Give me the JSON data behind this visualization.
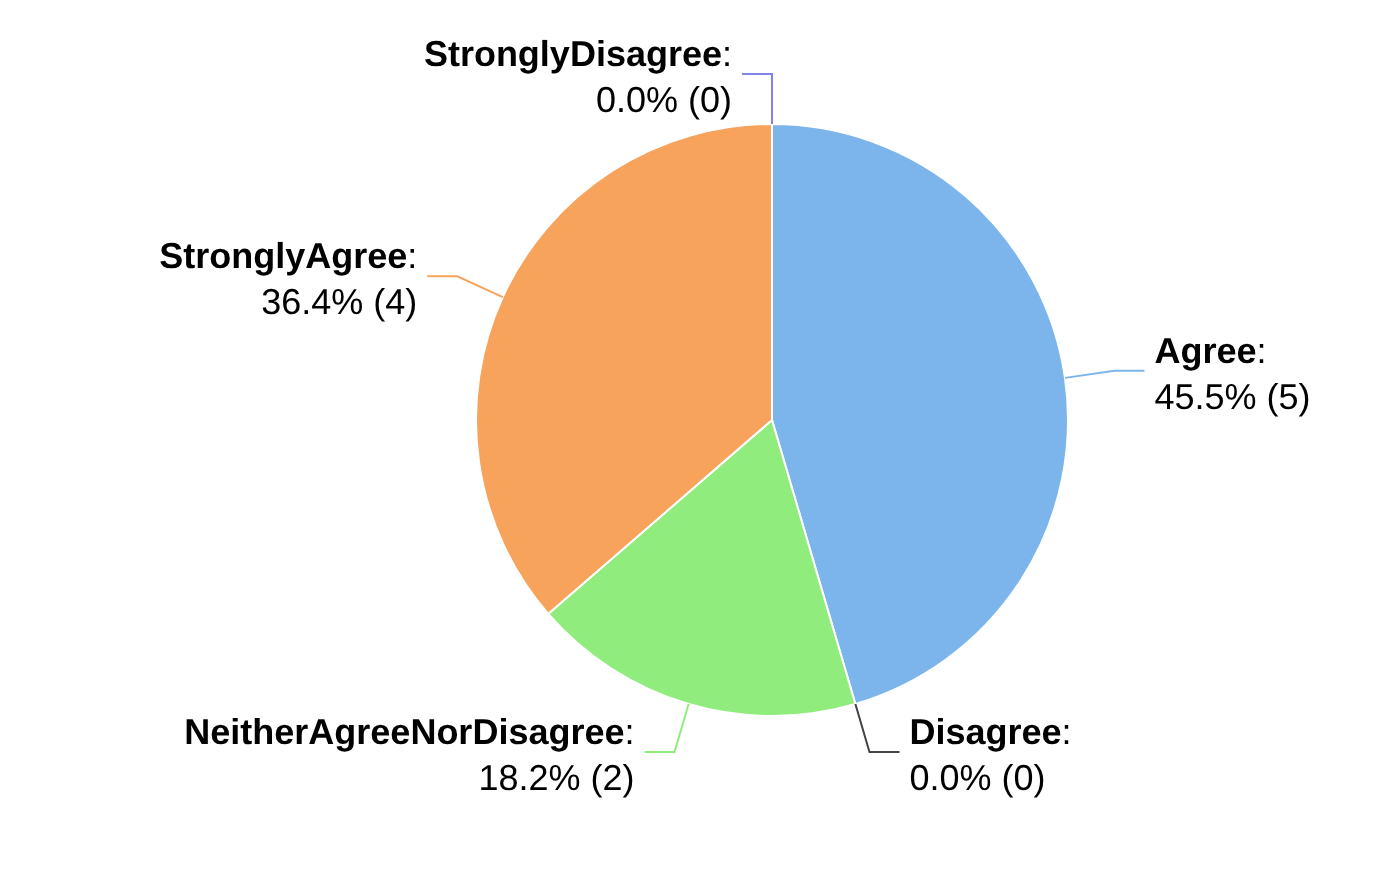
{
  "chart_data": {
    "type": "pie",
    "categories": [
      "Agree",
      "Disagree",
      "NeitherAgreeNorDisagree",
      "StronglyAgree",
      "StronglyDisagree"
    ],
    "values": [
      5,
      0,
      2,
      4,
      0
    ],
    "colors": [
      "#7cb5ec",
      "#434348",
      "#90ed7d",
      "#f7a35c",
      "#8085e9"
    ],
    "value_labels": [
      ":\n45.5% (5)",
      ":\n0.0% (0)",
      ":\n18.2% (2)",
      ":\n36.4% (4)",
      ":\n0.0% (0)"
    ]
  }
}
